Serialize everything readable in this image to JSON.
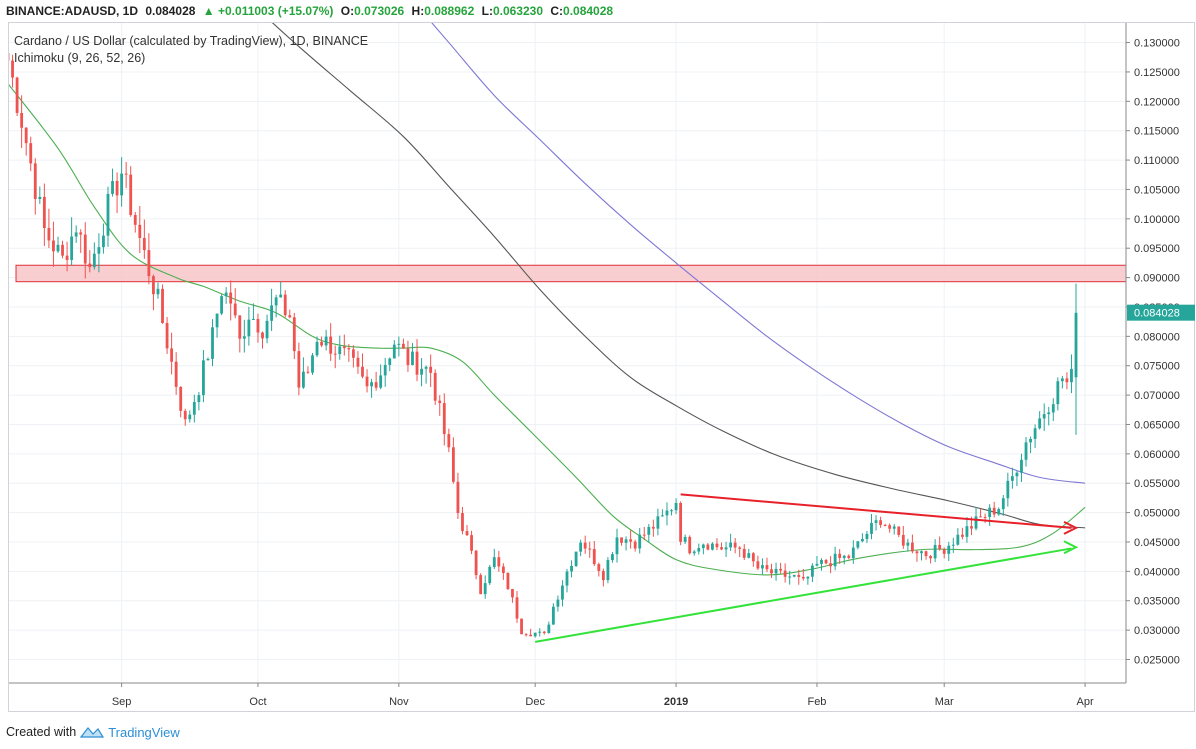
{
  "header": {
    "symbol": "BINANCE:ADAUSD, 1D",
    "last": "0.084028",
    "change": "+0.011003 (+15.07%)",
    "open_label": "O:",
    "open": "0.073026",
    "high_label": "H:",
    "high": "0.088962",
    "low_label": "L:",
    "low": "0.063230",
    "close_label": "C:",
    "close": "0.084028",
    "change_arrow": "▲"
  },
  "legend": {
    "title": "Cardano / US Dollar (calculated by TradingView), 1D, BINANCE",
    "indicator": "Ichimoku (9, 26, 52, 26)"
  },
  "footer": {
    "created_with": "Created with",
    "brand": "TradingView"
  },
  "colors": {
    "up": "#26a69a",
    "down": "#ef5350",
    "ma_fast": "#4caf50",
    "ma_mid": "#555555",
    "ma_slow": "#7e78d4",
    "resistance_fill": "#f8c6c8",
    "resistance_border": "#e0303a",
    "trend_red": "#e8202a",
    "trend_green": "#33e33a"
  },
  "chart_data": {
    "type": "candlestick",
    "x_axis": [
      "Sep",
      "Oct",
      "Nov",
      "Dec",
      "2019",
      "Feb",
      "Mar",
      "Apr"
    ],
    "x_axis_days": [
      18,
      48,
      79,
      109,
      140,
      171,
      199,
      230
    ],
    "x_range_days": [
      -7,
      239
    ],
    "ylim": [
      0.021,
      0.1335
    ],
    "y_ticks": [
      "0.130000",
      "0.125000",
      "0.120000",
      "0.115000",
      "0.110000",
      "0.105000",
      "0.100000",
      "0.095000",
      "0.090000",
      "0.085000",
      "0.080000",
      "0.075000",
      "0.070000",
      "0.065000",
      "0.060000",
      "0.055000",
      "0.050000",
      "0.045000",
      "0.040000",
      "0.035000",
      "0.030000",
      "0.025000"
    ],
    "y_tick_values": [
      0.13,
      0.125,
      0.12,
      0.115,
      0.11,
      0.105,
      0.1,
      0.095,
      0.09,
      0.085,
      0.08,
      0.075,
      0.07,
      0.065,
      0.06,
      0.055,
      0.05,
      0.045,
      0.04,
      0.035,
      0.03,
      0.025
    ],
    "price_label": "0.084028",
    "grid": true,
    "resistance_zone": [
      0.0893,
      0.0921
    ],
    "trendlines": [
      {
        "name": "descending",
        "from": [
          141,
          0.0531
        ],
        "to": [
          227,
          0.0474
        ]
      },
      {
        "name": "ascending",
        "from": [
          109,
          0.028
        ],
        "to": [
          227,
          0.0439
        ]
      }
    ],
    "moving_averages": [
      {
        "name": "fast",
        "points": [
          [
            -7,
            0.123
          ],
          [
            4,
            0.112
          ],
          [
            12,
            0.102
          ],
          [
            20,
            0.094
          ],
          [
            30,
            0.09
          ],
          [
            36,
            0.0885
          ],
          [
            44,
            0.086
          ],
          [
            52,
            0.084
          ],
          [
            60,
            0.08
          ],
          [
            66,
            0.0785
          ],
          [
            74,
            0.078
          ],
          [
            80,
            0.078
          ],
          [
            86,
            0.078
          ],
          [
            93,
            0.0757
          ],
          [
            100,
            0.07
          ],
          [
            108,
            0.0638
          ],
          [
            118,
            0.056
          ],
          [
            126,
            0.0495
          ],
          [
            133,
            0.0455
          ],
          [
            140,
            0.042
          ],
          [
            148,
            0.0404
          ],
          [
            160,
            0.0394
          ],
          [
            170,
            0.0404
          ],
          [
            180,
            0.0422
          ],
          [
            194,
            0.0437
          ],
          [
            206,
            0.0437
          ],
          [
            216,
            0.0442
          ],
          [
            223,
            0.0465
          ],
          [
            230,
            0.0509
          ]
        ]
      },
      {
        "name": "mid",
        "points": [
          [
            44,
            0.1385
          ],
          [
            56,
            0.13
          ],
          [
            68,
            0.122
          ],
          [
            80,
            0.114
          ],
          [
            90,
            0.1055
          ],
          [
            100,
            0.097
          ],
          [
            110,
            0.088
          ],
          [
            120,
            0.08
          ],
          [
            130,
            0.073
          ],
          [
            140,
            0.0682
          ],
          [
            150,
            0.064
          ],
          [
            162,
            0.0598
          ],
          [
            175,
            0.0565
          ],
          [
            188,
            0.054
          ],
          [
            200,
            0.052
          ],
          [
            212,
            0.0497
          ],
          [
            220,
            0.048
          ],
          [
            230,
            0.0474
          ]
        ]
      },
      {
        "name": "slow",
        "points": [
          [
            80,
            0.139
          ],
          [
            90,
            0.13
          ],
          [
            100,
            0.121
          ],
          [
            110,
            0.1135
          ],
          [
            120,
            0.106
          ],
          [
            130,
            0.099
          ],
          [
            140,
            0.0925
          ],
          [
            150,
            0.0862
          ],
          [
            160,
            0.08
          ],
          [
            170,
            0.0745
          ],
          [
            180,
            0.0695
          ],
          [
            190,
            0.065
          ],
          [
            200,
            0.0612
          ],
          [
            210,
            0.0585
          ],
          [
            220,
            0.056
          ],
          [
            230,
            0.055
          ]
        ]
      }
    ],
    "trend_arrows": [
      {
        "name": "red-arrow",
        "at": [
          228,
          0.0474
        ]
      },
      {
        "name": "green-arrow",
        "at": [
          228,
          0.0441
        ]
      }
    ],
    "anchors": [
      [
        -7,
        0.127
      ],
      [
        -4,
        0.117
      ],
      [
        1,
        0.098
      ],
      [
        5,
        0.093
      ],
      [
        8,
        0.099
      ],
      [
        11,
        0.0915
      ],
      [
        15,
        0.102
      ],
      [
        18,
        0.108
      ],
      [
        22,
        0.0965
      ],
      [
        26,
        0.086
      ],
      [
        30,
        0.072
      ],
      [
        32,
        0.065
      ],
      [
        35,
        0.0715
      ],
      [
        38,
        0.08
      ],
      [
        40,
        0.088
      ],
      [
        42,
        0.086
      ],
      [
        44,
        0.079
      ],
      [
        46,
        0.084
      ],
      [
        49,
        0.0815
      ],
      [
        52,
        0.086
      ],
      [
        55,
        0.0835
      ],
      [
        57,
        0.0715
      ],
      [
        59,
        0.074
      ],
      [
        61,
        0.08
      ],
      [
        64,
        0.0785
      ],
      [
        68,
        0.076
      ],
      [
        72,
        0.071
      ],
      [
        75,
        0.074
      ],
      [
        78,
        0.079
      ],
      [
        81,
        0.076
      ],
      [
        84,
        0.075
      ],
      [
        86,
        0.074
      ],
      [
        88,
        0.067
      ],
      [
        90,
        0.06
      ],
      [
        92,
        0.05
      ],
      [
        94,
        0.0455
      ],
      [
        97,
        0.037
      ],
      [
        100,
        0.042
      ],
      [
        103,
        0.0375
      ],
      [
        106,
        0.03
      ],
      [
        109,
        0.0295
      ],
      [
        111,
        0.029
      ],
      [
        113,
        0.034
      ],
      [
        116,
        0.04
      ],
      [
        119,
        0.0455
      ],
      [
        122,
        0.042
      ],
      [
        124,
        0.0395
      ],
      [
        127,
        0.046
      ],
      [
        131,
        0.045
      ],
      [
        134,
        0.047
      ],
      [
        137,
        0.049
      ],
      [
        140,
        0.052
      ],
      [
        141,
        0.046
      ],
      [
        143,
        0.044
      ],
      [
        146,
        0.045
      ],
      [
        150,
        0.044
      ],
      [
        154,
        0.044
      ],
      [
        158,
        0.0405
      ],
      [
        162,
        0.0395
      ],
      [
        166,
        0.039
      ],
      [
        168,
        0.038
      ],
      [
        171,
        0.041
      ],
      [
        175,
        0.042
      ],
      [
        178,
        0.0425
      ],
      [
        182,
        0.0465
      ],
      [
        185,
        0.049
      ],
      [
        188,
        0.0465
      ],
      [
        191,
        0.0445
      ],
      [
        195,
        0.043
      ],
      [
        199,
        0.044
      ],
      [
        203,
        0.0465
      ],
      [
        207,
        0.049
      ],
      [
        211,
        0.051
      ],
      [
        214,
        0.056
      ],
      [
        217,
        0.062
      ],
      [
        220,
        0.066
      ],
      [
        223,
        0.07
      ],
      [
        225,
        0.073
      ],
      [
        226,
        0.072
      ],
      [
        227,
        0.073
      ],
      [
        228,
        0.084
      ]
    ]
  }
}
